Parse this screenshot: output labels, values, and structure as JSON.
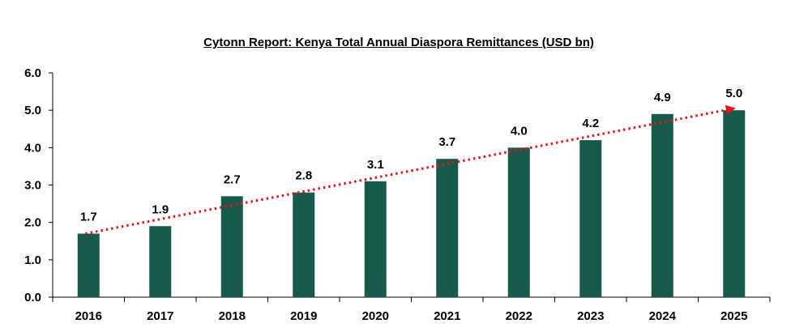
{
  "chart_data": {
    "type": "bar",
    "title": "Cytonn Report: Kenya Total Annual Diaspora Remittances (USD bn)",
    "xlabel": "",
    "ylabel": "",
    "categories": [
      "2016",
      "2017",
      "2018",
      "2019",
      "2020",
      "2021",
      "2022",
      "2023",
      "2024",
      "2025"
    ],
    "values": [
      1.7,
      1.9,
      2.7,
      2.8,
      3.1,
      3.7,
      4.0,
      4.2,
      4.9,
      5.0
    ],
    "data_labels": [
      "1.7",
      "1.9",
      "2.7",
      "2.8",
      "3.1",
      "3.7",
      "4.0",
      "4.2",
      "4.9",
      "5.0"
    ],
    "ylim": [
      0,
      6
    ],
    "yticks": [
      0,
      1,
      2,
      3,
      4,
      5,
      6
    ],
    "ytick_labels": [
      "0.0",
      "1.0",
      "2.0",
      "3.0",
      "4.0",
      "5.0",
      "6.0"
    ],
    "grid": false,
    "legend": "none",
    "trendline": {
      "style": "dotted-arrow",
      "from": {
        "category": "2016",
        "value": 1.7
      },
      "to": {
        "category": "2025",
        "value": 5.1
      }
    },
    "colors": {
      "bar": "#17594A",
      "trendline": "#E8101A",
      "axis": "#000000"
    }
  }
}
